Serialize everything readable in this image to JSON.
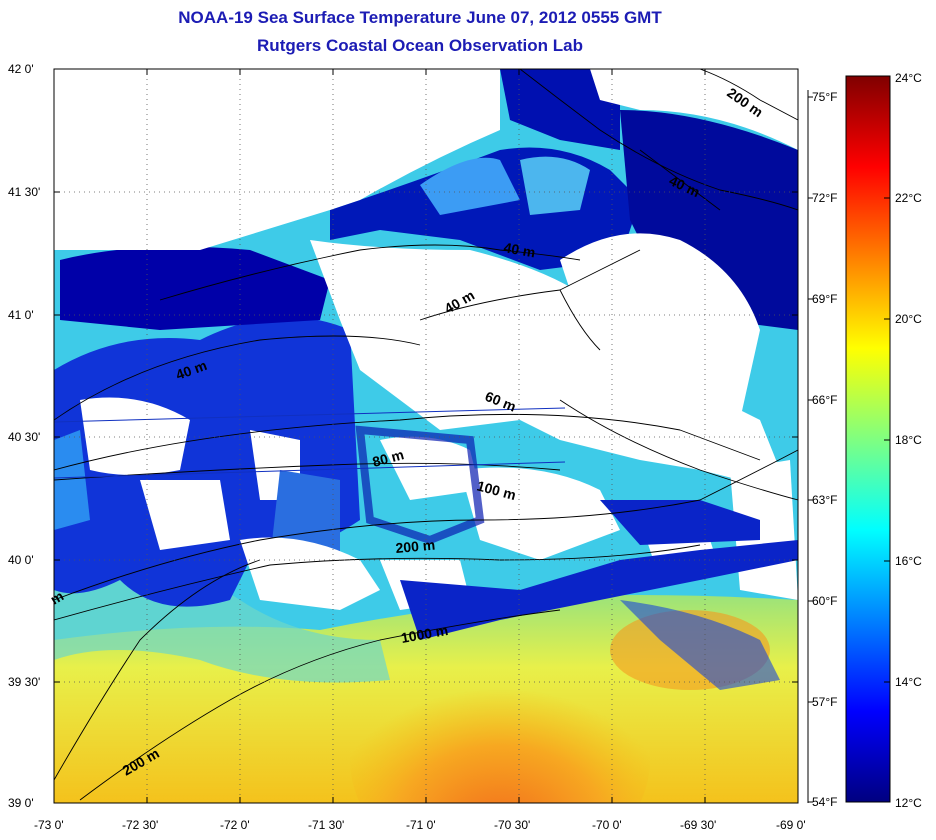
{
  "title": "NOAA-19 Sea Surface Temperature June 07, 2012 0555 GMT",
  "subtitle": "Rutgers Coastal Ocean Observation Lab",
  "lat_labels": [
    "42 0'",
    "41 30'",
    "41 0'",
    "40 30'",
    "40 0'",
    "39 30'",
    "39 0'"
  ],
  "lon_labels": [
    "-73 0'",
    "-72 30'",
    "-72 0'",
    "-71 30'",
    "-71 0'",
    "-70 30'",
    "-70 0'",
    "-69 30'",
    "-69 0'"
  ],
  "colorbar": {
    "celsius_labels": [
      "24°C",
      "22°C",
      "20°C",
      "18°C",
      "16°C",
      "14°C",
      "12°C"
    ],
    "fahrenheit_labels": [
      "75°F",
      "72°F",
      "69°F",
      "66°F",
      "63°F",
      "60°F",
      "57°F",
      "54°F"
    ],
    "colors": [
      "#000080",
      "#0000ff",
      "#0080ff",
      "#00ffff",
      "#80ff80",
      "#ffff00",
      "#ff8000",
      "#ff0000",
      "#800000"
    ]
  },
  "isobath_labels": [
    "200 m",
    "40 m",
    "40 m",
    "40 m",
    "40 m",
    "60 m",
    "80 m",
    "100 m",
    "200 m",
    "1000 m",
    "200 m",
    "m"
  ]
}
